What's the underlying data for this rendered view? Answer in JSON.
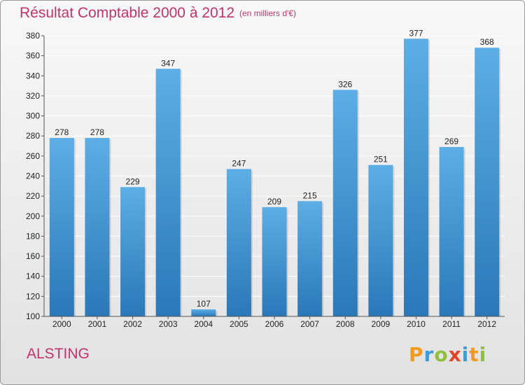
{
  "header": {
    "title": "Résultat Comptable 2000 à 2012",
    "subtitle": "(en milliers d'€)"
  },
  "footer": {
    "place": "ALSTING",
    "logo": {
      "text": "Proxiti",
      "letters": [
        {
          "char": "P",
          "color": "#f39a1d"
        },
        {
          "char": "r",
          "color": "#3d9bd6"
        },
        {
          "char": "o",
          "color": "#8fbf3b"
        },
        {
          "char": "x",
          "color": "#e2462a"
        },
        {
          "char": "i",
          "color": "#3d9bd6"
        },
        {
          "char": "t",
          "color": "#f39a1d"
        },
        {
          "char": "i",
          "color": "#8fbf3b"
        }
      ]
    }
  },
  "chart_data": {
    "type": "bar",
    "categories": [
      "2000",
      "2001",
      "2002",
      "2003",
      "2004",
      "2005",
      "2006",
      "2007",
      "2008",
      "2009",
      "2010",
      "2011",
      "2012"
    ],
    "values": [
      278,
      278,
      229,
      347,
      107,
      247,
      209,
      215,
      326,
      251,
      377,
      269,
      368
    ],
    "ylim": [
      100,
      380
    ],
    "yticks": [
      100,
      120,
      140,
      160,
      180,
      200,
      220,
      240,
      260,
      280,
      300,
      320,
      340,
      360,
      380
    ],
    "grid": true,
    "colors": {
      "bar_top": "#5caee6",
      "bar_bottom": "#2a78b8",
      "grid": "#ffffff",
      "axis": "#555555"
    }
  }
}
